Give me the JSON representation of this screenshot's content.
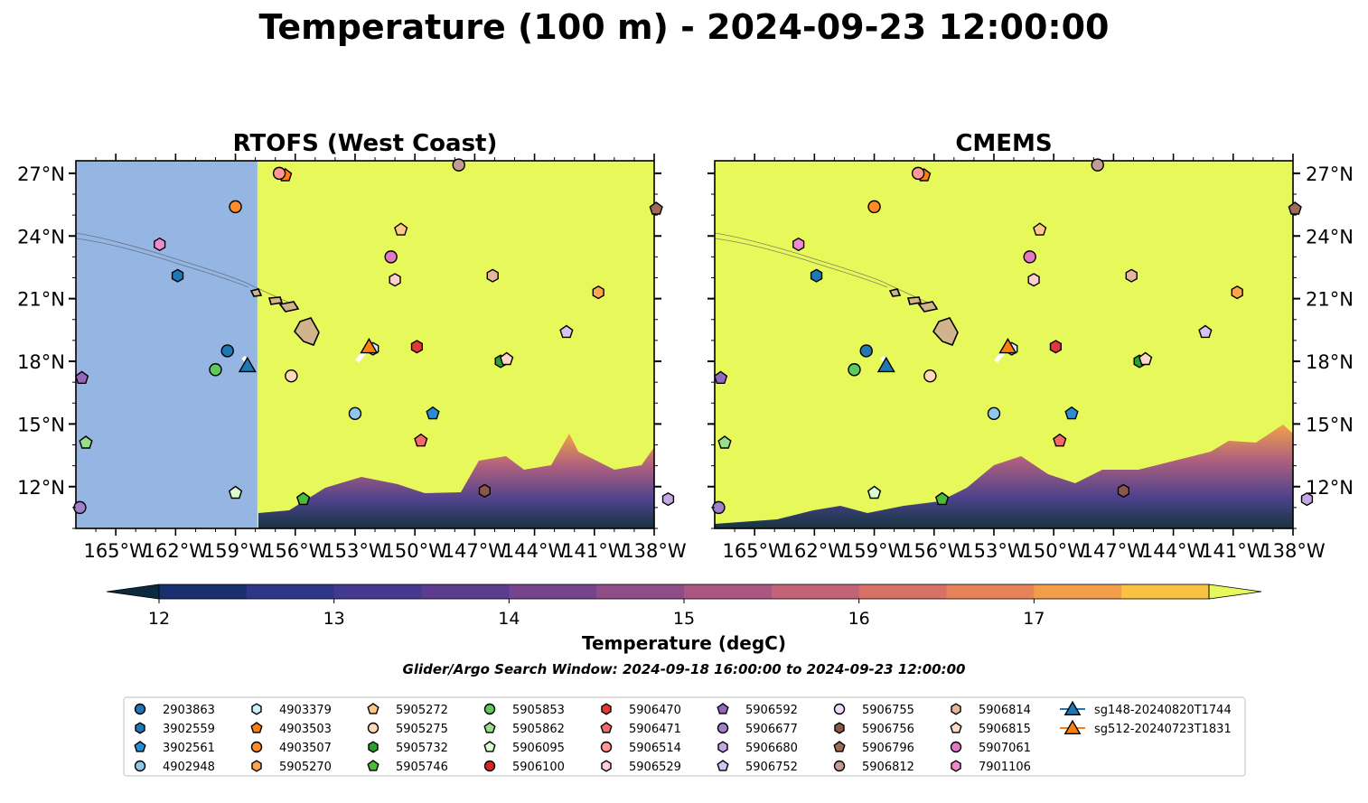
{
  "title": "Temperature (100 m) - 2024-09-23 12:00:00",
  "colorbar": {
    "label": "Temperature (degC)",
    "ticks": [
      "12",
      "13",
      "14",
      "15",
      "16",
      "17"
    ],
    "colors": [
      "#0b2a3e",
      "#18306e",
      "#2e3787",
      "#45398f",
      "#5c3c8e",
      "#76448c",
      "#8f4d88",
      "#a95780",
      "#c26377",
      "#d77167",
      "#e8825a",
      "#f29d4a",
      "#f8c243",
      "#e6f85a"
    ]
  },
  "search_window": "Glider/Argo Search Window: 2024-09-18 16:00:00 to 2024-09-23 12:00:00",
  "chart_data": [
    {
      "type": "heatmap",
      "title": "RTOFS (West Coast)",
      "xlim": [
        -167,
        -138
      ],
      "ylim": [
        10,
        27.6
      ],
      "xticks": [
        -165,
        -162,
        -159,
        -156,
        -153,
        -150,
        -147,
        -144,
        -141,
        -138
      ],
      "xtick_labels": [
        "165°W",
        "162°W",
        "159°W",
        "156°W",
        "153°W",
        "150°W",
        "147°W",
        "144°W",
        "141°W",
        "138°W"
      ],
      "yticks": [
        12,
        15,
        18,
        21,
        24,
        27
      ],
      "ytick_labels": [
        "12°N",
        "15°N",
        "18°N",
        "21°N",
        "24°N",
        "27°N"
      ],
      "no_data_west_of_lon": -157.9,
      "warm_color": "#e6f85a"
    },
    {
      "type": "heatmap",
      "title": "CMEMS",
      "xlim": [
        -167,
        -138
      ],
      "ylim": [
        10,
        27.6
      ],
      "xticks": [
        -165,
        -162,
        -159,
        -156,
        -153,
        -150,
        -147,
        -144,
        -141,
        -138
      ],
      "xtick_labels": [
        "165°W",
        "162°W",
        "159°W",
        "156°W",
        "153°W",
        "150°W",
        "147°W",
        "144°W",
        "141°W",
        "138°W"
      ],
      "yticks": [
        12,
        15,
        18,
        21,
        24,
        27
      ],
      "ytick_labels": [
        "12°N",
        "15°N",
        "18°N",
        "21°N",
        "24°N",
        "27°N"
      ],
      "warm_color": "#e6f85a"
    }
  ],
  "floats": [
    {
      "id": "2903863",
      "marker": "circle",
      "color": "#1f77b4",
      "lon": -159.4,
      "lat": 18.5
    },
    {
      "id": "3902559",
      "marker": "hexagon",
      "color": "#1f77b4",
      "lon": -161.9,
      "lat": 22.1
    },
    {
      "id": "3902561",
      "marker": "pentagon",
      "color": "#2b8cd6",
      "lon": -149.1,
      "lat": 15.5
    },
    {
      "id": "4902948",
      "marker": "circle",
      "color": "#8ec7ea",
      "lon": -153.0,
      "lat": 15.5
    },
    {
      "id": "4903379",
      "marker": "hexagon",
      "color": "#cfeefc",
      "lon": -152.1,
      "lat": 18.6
    },
    {
      "id": "4903503",
      "marker": "pentagon",
      "color": "#ff7f0e",
      "lon": -156.5,
      "lat": 26.9
    },
    {
      "id": "4903507",
      "marker": "circle",
      "color": "#ff8c2a",
      "lon": -159.0,
      "lat": 25.4
    },
    {
      "id": "5905270",
      "marker": "hexagon",
      "color": "#ffa54f",
      "lon": -140.8,
      "lat": 21.3
    },
    {
      "id": "5905272",
      "marker": "pentagon",
      "color": "#ffc985",
      "lon": -150.7,
      "lat": 24.3
    },
    {
      "id": "5905275",
      "marker": "circle",
      "color": "#ffdab4",
      "lon": -156.2,
      "lat": 17.3
    },
    {
      "id": "5905732",
      "marker": "hexagon",
      "color": "#2ca02c",
      "lon": -145.7,
      "lat": 18.0
    },
    {
      "id": "5905746",
      "marker": "pentagon",
      "color": "#4cbb3a",
      "lon": -155.6,
      "lat": 11.4
    },
    {
      "id": "5905853",
      "marker": "circle",
      "color": "#5fc85f",
      "lon": -160.0,
      "lat": 17.6
    },
    {
      "id": "5905862",
      "marker": "pentagon",
      "color": "#98df8a",
      "lon": -166.5,
      "lat": 14.1
    },
    {
      "id": "5906095",
      "marker": "pentagon",
      "color": "#d9fcd0",
      "lon": -159.0,
      "lat": 11.7
    },
    {
      "id": "5906100",
      "marker": "circle",
      "color": "#d62728",
      "lon": 0,
      "lat": 0,
      "hidden": true
    },
    {
      "id": "5906470",
      "marker": "hexagon",
      "color": "#e0393a",
      "lon": -149.9,
      "lat": 18.7
    },
    {
      "id": "5906471",
      "marker": "pentagon",
      "color": "#f26b6b",
      "lon": -149.7,
      "lat": 14.2
    },
    {
      "id": "5906514",
      "marker": "circle",
      "color": "#ff9896",
      "lon": -156.8,
      "lat": 27.0
    },
    {
      "id": "5906529",
      "marker": "hexagon",
      "color": "#ffd0cf",
      "lon": -151.0,
      "lat": 21.9
    },
    {
      "id": "5906592",
      "marker": "pentagon",
      "color": "#9467bd",
      "lon": -166.7,
      "lat": 17.2
    },
    {
      "id": "5906677",
      "marker": "circle",
      "color": "#a17fcb",
      "lon": -166.8,
      "lat": 11.0
    },
    {
      "id": "5906680",
      "marker": "hexagon",
      "color": "#c3a8e6",
      "lon": -137.3,
      "lat": 11.4
    },
    {
      "id": "5906752",
      "marker": "pentagon",
      "color": "#d7c2f2",
      "lon": -142.4,
      "lat": 19.4
    },
    {
      "id": "5906755",
      "marker": "circle",
      "color": "#f0d9fa",
      "lon": 0,
      "lat": 0,
      "hidden": true
    },
    {
      "id": "5906756",
      "marker": "hexagon",
      "color": "#8c564b",
      "lon": -146.5,
      "lat": 11.8
    },
    {
      "id": "5906796",
      "marker": "pentagon",
      "color": "#a06a58",
      "lon": -137.9,
      "lat": 25.3
    },
    {
      "id": "5906812",
      "marker": "circle",
      "color": "#c49c94",
      "lon": -147.8,
      "lat": 27.4
    },
    {
      "id": "5906814",
      "marker": "hexagon",
      "color": "#e8b59c",
      "lon": -146.1,
      "lat": 22.1
    },
    {
      "id": "5906815",
      "marker": "pentagon",
      "color": "#ffd8c8",
      "lon": -145.4,
      "lat": 18.1
    },
    {
      "id": "5907061",
      "marker": "circle",
      "color": "#e377c2",
      "lon": -151.2,
      "lat": 23.0
    },
    {
      "id": "7901106",
      "marker": "hexagon",
      "color": "#f08ad0",
      "lon": -162.8,
      "lat": 23.6
    }
  ],
  "gliders": [
    {
      "id": "sg148-20240820T1744",
      "color": "#1f77b4",
      "lon": -158.4,
      "lat": 17.8,
      "track": [
        [
          -158.6,
          18.2
        ],
        [
          -158.3,
          17.8
        ]
      ]
    },
    {
      "id": "sg512-20240723T1831",
      "color": "#ff7f0e",
      "lon": -152.3,
      "lat": 18.7,
      "track": [
        [
          -152.9,
          18.0
        ],
        [
          -152.4,
          18.6
        ]
      ]
    }
  ]
}
